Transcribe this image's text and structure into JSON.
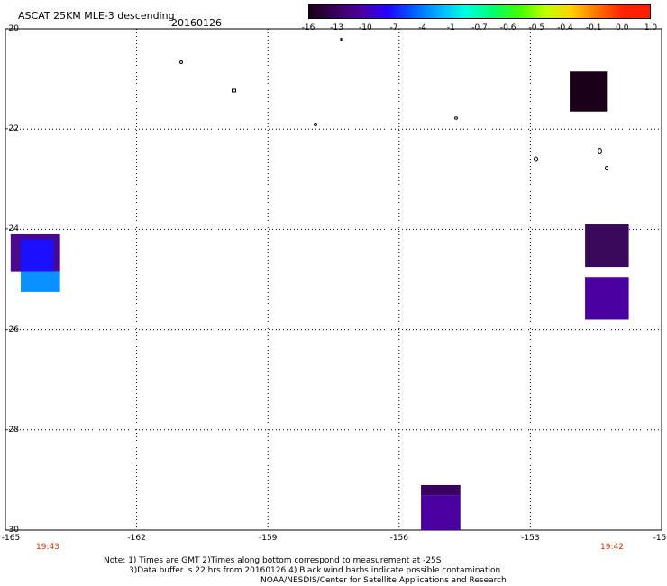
{
  "header": {
    "title": "ASCAT 25KM MLE-3 descending",
    "date": "20160126"
  },
  "colorbar": {
    "labels": [
      "-16",
      "-13",
      "-10",
      "-7",
      "-4",
      "-1",
      "-0.7",
      "-0.6",
      "-0.5",
      "-0.4",
      "-0.1",
      "0.0",
      "1.0"
    ],
    "colors": [
      "#1a0018",
      "#3a005a",
      "#4b00a0",
      "#2400ff",
      "#0060ff",
      "#00b4ff",
      "#00ffe0",
      "#00ff70",
      "#40ff00",
      "#c0ff00",
      "#ffd000",
      "#ff7000",
      "#ff2000"
    ]
  },
  "axes": {
    "lat_labels": [
      "-20",
      "-22",
      "-24",
      "-26",
      "-28",
      "-30"
    ],
    "lon_labels": [
      "-165",
      "-162",
      "-159",
      "-156",
      "-153",
      "-15"
    ]
  },
  "times": {
    "left": "19:43",
    "right": "19:42"
  },
  "notes": {
    "line1": "Note: 1) Times are GMT 2)Times along bottom correspond to measurement at -25S",
    "line2": "3)Data buffer is 22 hrs from 20160126 4) Black wind barbs indicate possible contamination",
    "line3": "NOAA/NESDIS/Center for Satellite Applications and Research"
  },
  "map_data": {
    "lon_range": [
      -165,
      -150
    ],
    "lat_range": [
      -30,
      -20
    ],
    "cells": [
      {
        "lon": [
          -164.88,
          -163.75
        ],
        "lat": [
          -24.1,
          -24.85
        ],
        "color": "#4a0a90"
      },
      {
        "lon": [
          -164.65,
          -163.75
        ],
        "lat": [
          -24.85,
          -25.25
        ],
        "color": "#0a90ff"
      },
      {
        "lon": [
          -164.65,
          -163.9
        ],
        "lat": [
          -24.2,
          -24.85
        ],
        "color": "#1a10ff"
      },
      {
        "lon": [
          -152.1,
          -151.25
        ],
        "lat": [
          -20.85,
          -21.65
        ],
        "color": "#1a0018"
      },
      {
        "lon": [
          -151.75,
          -150.75
        ],
        "lat": [
          -23.9,
          -24.75
        ],
        "color": "#3a0a5a"
      },
      {
        "lon": [
          -151.75,
          -150.75
        ],
        "lat": [
          -24.95,
          -25.8
        ],
        "color": "#4a00a0"
      },
      {
        "lon": [
          -155.5,
          -154.6
        ],
        "lat": [
          -29.1,
          -29.3
        ],
        "color": "#3a0060"
      },
      {
        "lon": [
          -155.5,
          -154.6
        ],
        "lat": [
          -29.3,
          -30.0
        ],
        "color": "#4a00a0"
      }
    ]
  }
}
